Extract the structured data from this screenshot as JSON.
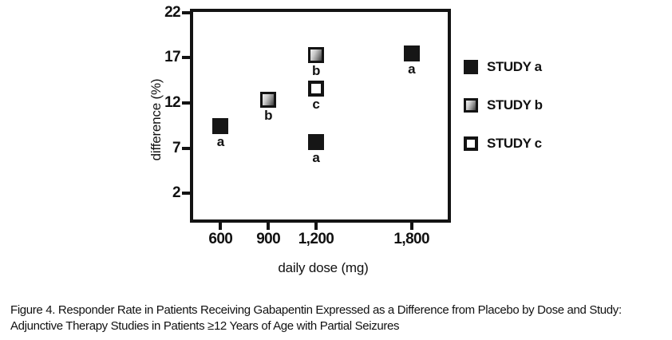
{
  "figure": {
    "caption_line1": "Figure 4. Responder Rate in Patients Receiving Gabapentin Expressed as a Difference from Placebo by Dose and Study:",
    "caption_line2": "Adjunctive Therapy Studies in Patients ≥12 Years of Age with Partial Seizures"
  },
  "chart_data": {
    "type": "scatter",
    "title": "",
    "xlabel": "daily dose (mg)",
    "ylabel": "difference (%)",
    "xlim": [
      428,
      2027
    ],
    "ylim": [
      -0.9,
      22.05
    ],
    "grid": false,
    "legend_position": "right",
    "x_ticks": [
      {
        "value": 600,
        "label": "600"
      },
      {
        "value": 900,
        "label": "900"
      },
      {
        "value": 1200,
        "label": "1,200"
      },
      {
        "value": 1800,
        "label": "1,800"
      }
    ],
    "y_ticks": [
      {
        "value": 22,
        "label": "22"
      },
      {
        "value": 17,
        "label": "17"
      },
      {
        "value": 12,
        "label": "12"
      },
      {
        "value": 7,
        "label": "7"
      },
      {
        "value": 2,
        "label": "2"
      }
    ],
    "series": [
      {
        "name": "STUDY a",
        "marker": "black-square",
        "points": [
          {
            "x": 600,
            "y": 9.4,
            "letter": "a"
          },
          {
            "x": 1200,
            "y": 7.7,
            "letter": "a"
          },
          {
            "x": 1800,
            "y": 17.5,
            "letter": "a"
          }
        ]
      },
      {
        "name": "STUDY b",
        "marker": "gradient-square",
        "points": [
          {
            "x": 900,
            "y": 12.3,
            "letter": "b"
          },
          {
            "x": 1200,
            "y": 17.3,
            "letter": "b"
          }
        ]
      },
      {
        "name": "STUDY c",
        "marker": "open-square",
        "points": [
          {
            "x": 1200,
            "y": 13.6,
            "letter": "c"
          }
        ]
      }
    ]
  },
  "colors": {
    "ink": "#131313",
    "marker_black": "#161616",
    "gradient_light": "#f0f0f0",
    "gradient_dark": "#3c3c3c",
    "background": "#ffffff"
  }
}
